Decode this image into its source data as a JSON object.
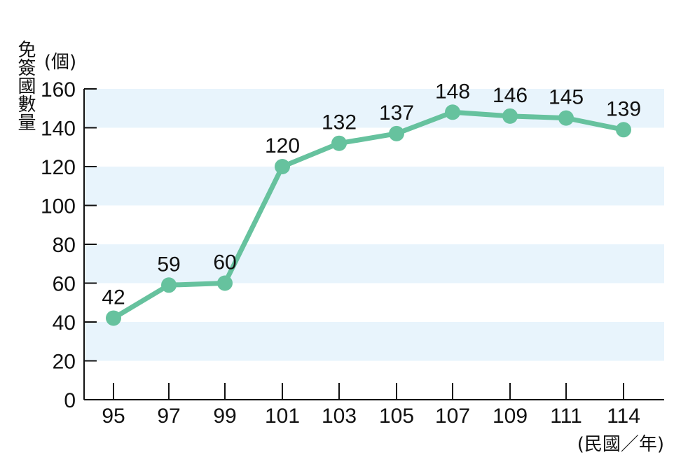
{
  "chart_data": {
    "type": "line",
    "y_unit": "(個)",
    "ylabel": "免簽國數量",
    "x_unit": "(民國／年)",
    "categories": [
      "95",
      "97",
      "99",
      "101",
      "103",
      "105",
      "107",
      "109",
      "111",
      "114"
    ],
    "series": [
      {
        "values": [
          42,
          59,
          60,
          120,
          132,
          137,
          148,
          146,
          145,
          139
        ]
      }
    ],
    "ylim": [
      0,
      160
    ],
    "yticks": [
      0,
      20,
      40,
      60,
      80,
      100,
      120,
      140,
      160
    ],
    "band_color": "#e8f4fc",
    "line_color": "#66c29e",
    "axis_color": "#111111"
  }
}
